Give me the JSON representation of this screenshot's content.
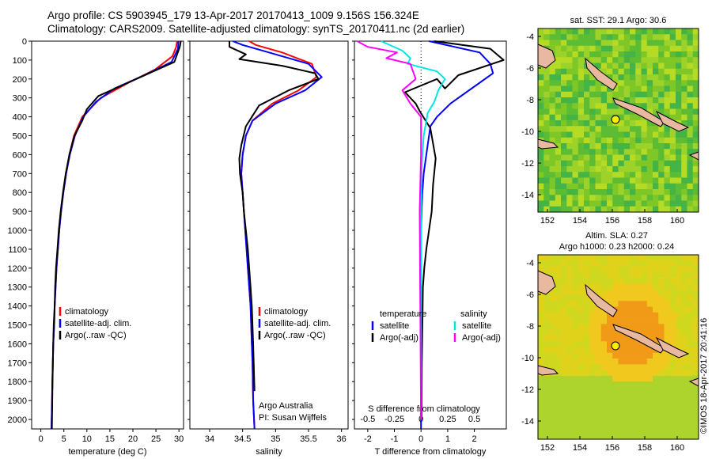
{
  "header": {
    "line1": "Argo profile: CS 5903945_179 13-Apr-2017 20170413_1009 9.156S 156.324E",
    "line2": "Climatology: CARS2009. Satellite-adjusted climatology: synTS_20170411.nc (2d earlier)"
  },
  "side_label": "©IMOS 18-Apr-2017 20:41:16",
  "colors": {
    "climatology": "#ff0000",
    "satellite": "#0000ff",
    "argo": "#000000",
    "satellite_s": "#00e5e5",
    "argo_s": "#ff00ff",
    "land": "#e8b8a0"
  },
  "chart_data": [
    {
      "type": "line",
      "xlabel": "temperature (deg C)",
      "ylabel": "",
      "xlim": [
        -2,
        31
      ],
      "ylim": [
        2050,
        0
      ],
      "xticks": [
        0,
        5,
        10,
        15,
        20,
        25,
        30
      ],
      "yticks": [
        0,
        100,
        200,
        300,
        400,
        500,
        600,
        700,
        800,
        900,
        1000,
        1100,
        1200,
        1300,
        1400,
        1500,
        1600,
        1700,
        1800,
        1900,
        2000
      ],
      "legend_position": "lower-center",
      "series": [
        {
          "name": "climatology",
          "color": "#ff0000",
          "x": [
            29.6,
            29.4,
            28.6,
            24.8,
            19.0,
            13.0,
            9.0,
            7.2,
            6.2,
            5.5,
            4.9,
            4.4,
            4.0,
            3.7,
            3.4,
            3.2,
            3.0,
            2.9,
            2.7,
            2.6,
            2.5,
            2.4,
            2.3
          ],
          "y": [
            0,
            30,
            80,
            150,
            220,
            300,
            400,
            500,
            600,
            700,
            800,
            900,
            1000,
            1100,
            1200,
            1300,
            1400,
            1500,
            1600,
            1700,
            1800,
            1950,
            2050
          ]
        },
        {
          "name": "satellite-adj. clim.",
          "color": "#0000ff",
          "x": [
            29.9,
            29.8,
            28.4,
            22.5,
            16.0,
            12.0,
            9.2,
            7.4,
            6.3,
            5.5,
            4.9,
            4.4,
            4.0,
            3.7,
            3.4,
            3.2,
            3.0,
            2.9,
            2.7,
            2.6,
            2.5,
            2.4,
            2.3
          ],
          "y": [
            0,
            40,
            110,
            180,
            250,
            320,
            400,
            500,
            600,
            700,
            800,
            900,
            1000,
            1100,
            1200,
            1300,
            1400,
            1500,
            1600,
            1700,
            1800,
            1950,
            2050
          ]
        },
        {
          "name": "Argo(..raw -QC)",
          "color": "#000000",
          "x": [
            30.4,
            30.2,
            29.0,
            23.5,
            18.0,
            12.5,
            10.0,
            9.0,
            7.3,
            6.2,
            5.4,
            4.8,
            4.3,
            3.9,
            3.6,
            3.3,
            3.1,
            3.0,
            2.8,
            2.7,
            2.6,
            2.5,
            2.4
          ],
          "y": [
            0,
            30,
            110,
            170,
            230,
            290,
            360,
            420,
            500,
            600,
            700,
            800,
            900,
            1000,
            1100,
            1200,
            1300,
            1400,
            1500,
            1600,
            1700,
            1850,
            2050
          ]
        }
      ]
    },
    {
      "type": "line",
      "xlabel": "salinity",
      "ylabel": "",
      "xlim": [
        33.7,
        36.1
      ],
      "ylim": [
        2050,
        0
      ],
      "xticks": [
        34,
        34.5,
        35,
        35.5,
        36
      ],
      "tick_labels": [
        "34",
        "34.5",
        "35",
        "35.5",
        "36"
      ],
      "legend_position": "lower-right",
      "series": [
        {
          "name": "climatology",
          "color": "#ff0000",
          "x": [
            34.6,
            34.7,
            35.1,
            35.55,
            35.62,
            35.35,
            34.95,
            34.65,
            34.55,
            34.5,
            34.48,
            34.5,
            34.52,
            34.54,
            34.56,
            34.58,
            34.6,
            34.62,
            34.63,
            34.64,
            34.65,
            34.66,
            34.68
          ],
          "y": [
            0,
            20,
            60,
            120,
            190,
            260,
            330,
            420,
            500,
            600,
            700,
            800,
            900,
            1000,
            1100,
            1200,
            1300,
            1400,
            1500,
            1600,
            1700,
            1900,
            2050
          ]
        },
        {
          "name": "satellite-adj. clim.",
          "color": "#0000ff",
          "x": [
            34.35,
            34.5,
            34.9,
            35.5,
            35.7,
            35.45,
            35.0,
            34.65,
            34.55,
            34.5,
            34.48,
            34.5,
            34.52,
            34.54,
            34.56,
            34.58,
            34.6,
            34.62,
            34.63,
            34.64,
            34.65,
            34.66,
            34.68
          ],
          "y": [
            0,
            20,
            60,
            120,
            190,
            260,
            330,
            420,
            500,
            600,
            700,
            800,
            900,
            1000,
            1100,
            1200,
            1300,
            1400,
            1500,
            1600,
            1700,
            1900,
            2050
          ]
        },
        {
          "name": "Argo(..raw -QC)",
          "color": "#000000",
          "x": [
            34.3,
            34.3,
            34.55,
            34.45,
            35.1,
            35.6,
            35.65,
            35.2,
            34.75,
            34.55,
            34.48,
            34.45,
            34.46,
            34.5,
            34.52,
            34.55,
            34.58,
            34.6,
            34.62,
            34.64,
            34.66,
            34.68
          ],
          "y": [
            0,
            30,
            70,
            95,
            130,
            170,
            200,
            260,
            340,
            450,
            550,
            620,
            700,
            800,
            900,
            1000,
            1100,
            1200,
            1300,
            1400,
            1600,
            1850
          ]
        }
      ]
    },
    {
      "type": "line",
      "xlabel": "T difference from climatology",
      "xlabel_top": "S difference from climatology",
      "xlim": [
        -2.5,
        3.2
      ],
      "ylim": [
        2050,
        0
      ],
      "xticks": [
        -2,
        -1,
        0,
        1,
        2
      ],
      "top_ticks": [
        -0.5,
        -0.25,
        0,
        0.25,
        0.5
      ],
      "top_tick_labels": [
        "-0.5",
        "-0.25",
        "0",
        "0.25",
        "0.5"
      ],
      "legend_position": "lower-center",
      "legend_headers": [
        "temperature",
        "salinity"
      ],
      "series": [
        {
          "name": "satellite",
          "group": "temperature",
          "color": "#0000ff",
          "x": [
            0.3,
            2.2,
            2.6,
            2.7,
            2.1,
            1.1,
            0.6,
            0.35,
            0.2,
            0.1,
            0.05,
            0.02,
            0.0,
            0.0,
            0.0,
            0.0,
            0.0,
            0.0,
            0.0,
            0.0
          ],
          "y": [
            0,
            60,
            120,
            170,
            230,
            330,
            400,
            450,
            600,
            700,
            800,
            900,
            1000,
            1200,
            1400,
            1600,
            1700,
            1800,
            1900,
            2050
          ]
        },
        {
          "name": "Argo(-adj)",
          "group": "temperature",
          "color": "#000000",
          "x": [
            0.5,
            2.6,
            3.1,
            1.4,
            0.9,
            0.6,
            -0.6,
            -0.2,
            -0.05,
            0.35,
            0.55,
            0.45,
            0.4,
            0.3,
            0.2,
            0.12,
            0.07,
            0.05,
            0.03,
            0.02
          ],
          "y": [
            0,
            40,
            100,
            180,
            250,
            200,
            270,
            330,
            370,
            460,
            620,
            760,
            900,
            1000,
            1100,
            1200,
            1300,
            1500,
            1700,
            2000
          ]
        },
        {
          "name": "satellite",
          "group": "salinity",
          "color": "#00e5e5",
          "x": [
            -1.5,
            -0.7,
            -0.4,
            -0.5,
            0.6,
            0.9,
            0.65,
            0.5,
            0.25,
            0.1,
            0.05,
            0.02,
            0.0,
            0.0,
            0.0
          ],
          "y": [
            0,
            50,
            90,
            120,
            160,
            200,
            260,
            320,
            380,
            500,
            600,
            700,
            900,
            1200,
            2000
          ]
        },
        {
          "name": "Argo(-adj)",
          "group": "salinity",
          "color": "#ff00ff",
          "x": [
            -2.4,
            -2.0,
            -0.9,
            -1.3,
            -0.4,
            -0.2,
            -0.7,
            -0.4,
            0.0,
            0.0,
            -0.05,
            0.0
          ],
          "y": [
            0,
            30,
            60,
            90,
            120,
            200,
            260,
            330,
            400,
            600,
            900,
            2000
          ]
        }
      ]
    }
  ],
  "maps": [
    {
      "title": "sat. SST: 29.1  Argo: 30.6",
      "subtitle": "",
      "xticks": [
        "152",
        "154",
        "156",
        "158",
        "160"
      ],
      "yticks": [
        "-4",
        "-6",
        "-8",
        "-10",
        "-12",
        "-14"
      ],
      "palette": [
        "#9cd22a",
        "#7fc727",
        "#5cbc33",
        "#43b445",
        "#b6db24"
      ]
    },
    {
      "title": "Altim. SLA: 0.27",
      "subtitle": "Argo h1000: 0.23 h2000: 0.24",
      "xticks": [
        "152",
        "154",
        "156",
        "158",
        "160"
      ],
      "yticks": [
        "-4",
        "-6",
        "-8",
        "-10",
        "-12",
        "-14"
      ],
      "palette": [
        "#f0c81e",
        "#e0d21a",
        "#cfd81e",
        "#f09a18",
        "#acd42c"
      ]
    }
  ],
  "credit": {
    "line1": "Argo Australia",
    "line2": "PI: Susan Wijffels"
  }
}
